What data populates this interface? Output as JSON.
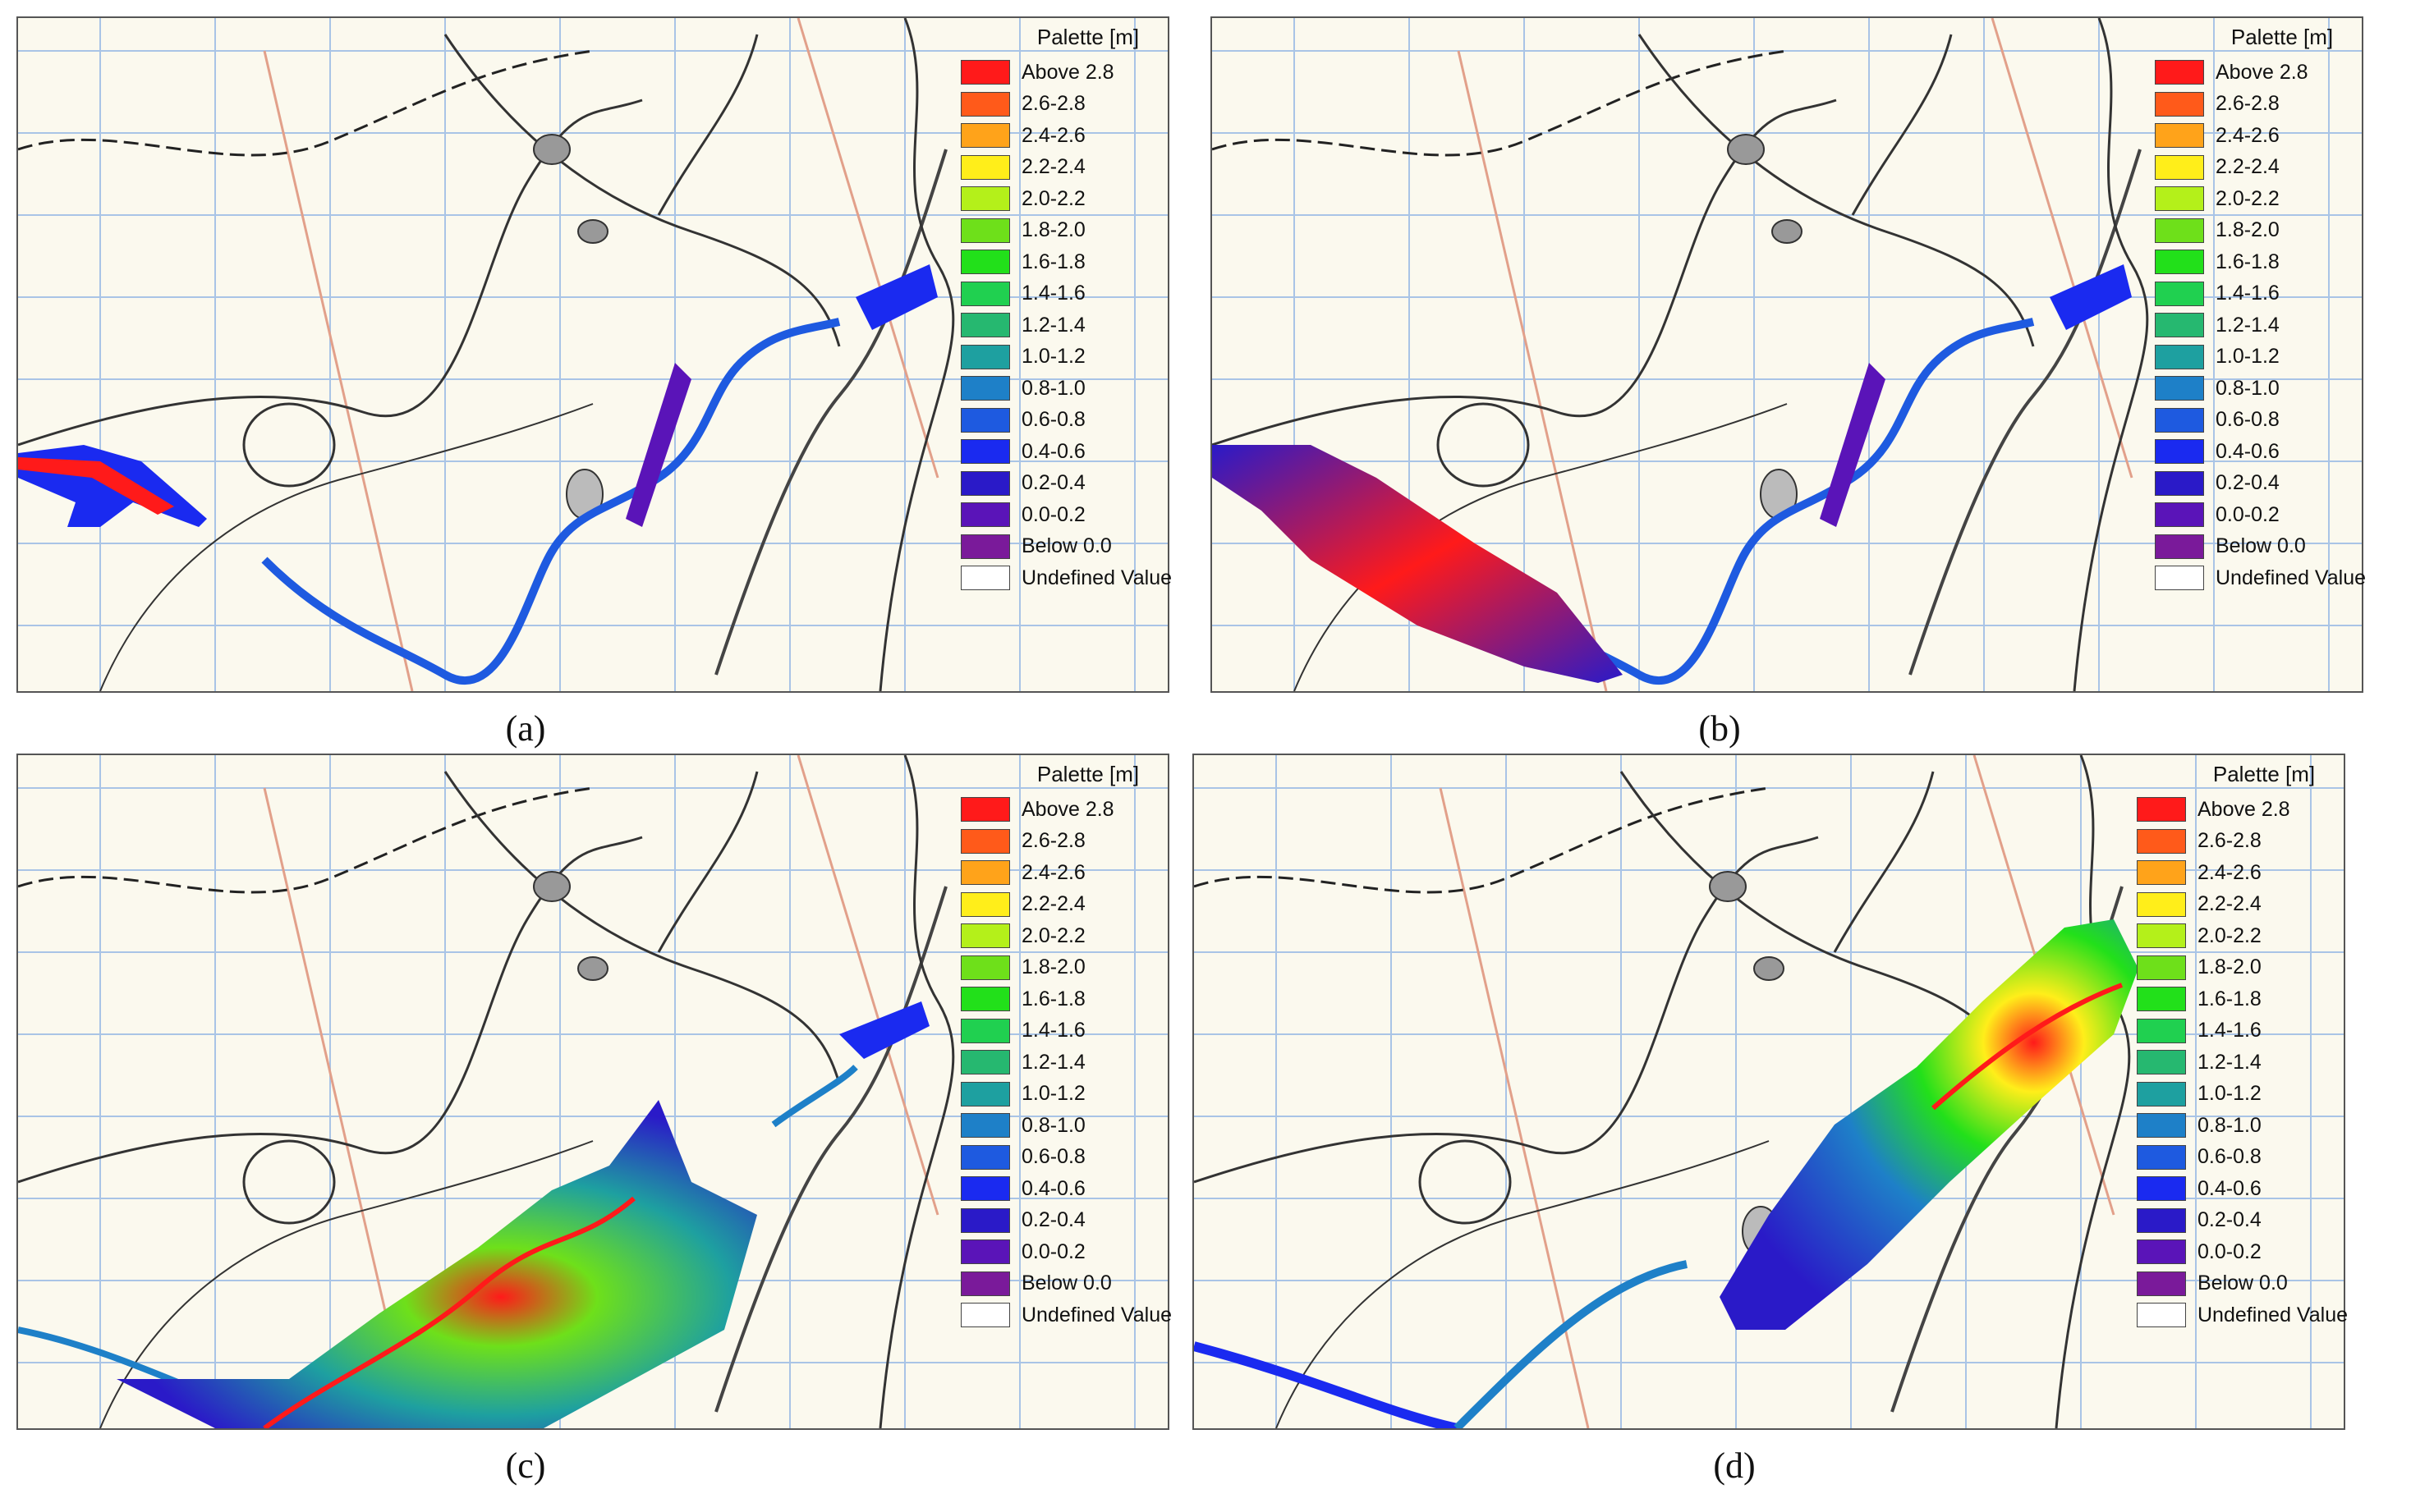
{
  "legend": {
    "title": "Palette [m]",
    "entries": [
      {
        "label": "Above 2.8",
        "color": "#ff1a1a"
      },
      {
        "label": "2.6-2.8",
        "color": "#ff5a1a"
      },
      {
        "label": "2.4-2.6",
        "color": "#ffa31a"
      },
      {
        "label": "2.2-2.4",
        "color": "#ffee1a"
      },
      {
        "label": "2.0-2.2",
        "color": "#b4f01a"
      },
      {
        "label": "1.8-2.0",
        "color": "#6ee01a"
      },
      {
        "label": "1.6-1.8",
        "color": "#22e01a"
      },
      {
        "label": "1.4-1.6",
        "color": "#20d050"
      },
      {
        "label": "1.2-1.4",
        "color": "#26b870"
      },
      {
        "label": "1.0-1.2",
        "color": "#1ea0a0"
      },
      {
        "label": "0.8-1.0",
        "color": "#1e80c8"
      },
      {
        "label": "0.6-0.8",
        "color": "#1e5ae0"
      },
      {
        "label": "0.4-0.6",
        "color": "#1a2af0"
      },
      {
        "label": "0.2-0.4",
        "color": "#2a1ac8"
      },
      {
        "label": "0.0-0.2",
        "color": "#5a14b8"
      },
      {
        "label": "Below 0.0",
        "color": "#7a1a9a"
      },
      {
        "label": "Undefined Value",
        "color": "#ffffff"
      }
    ]
  },
  "panels": [
    {
      "id": "a",
      "caption": "(a)"
    },
    {
      "id": "b",
      "caption": "(b)"
    },
    {
      "id": "c",
      "caption": "(c)"
    },
    {
      "id": "d",
      "caption": "(d)"
    }
  ]
}
